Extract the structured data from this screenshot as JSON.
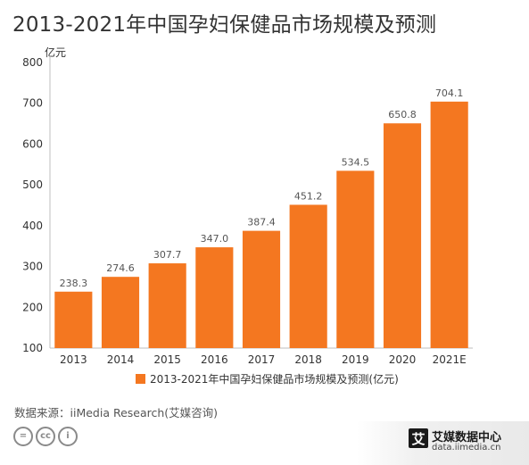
{
  "chart_data": {
    "type": "bar",
    "title": "2013-2021年中国孕妇保健品市场规模及预测",
    "unit_label": "亿元",
    "categories": [
      "2013",
      "2014",
      "2015",
      "2016",
      "2017",
      "2018",
      "2019",
      "2020",
      "2021E"
    ],
    "series": [
      {
        "name": "2013-2021年中国孕妇保健品市场规模及预测(亿元)",
        "values": [
          238.3,
          274.6,
          307.7,
          347.0,
          387.4,
          451.2,
          534.5,
          650.8,
          704.1
        ],
        "value_labels": [
          "238.3",
          "274.6",
          "307.7",
          "347.0",
          "387.4",
          "451.2",
          "534.5",
          "650.8",
          "704.1"
        ]
      }
    ],
    "ylim": [
      100,
      800
    ],
    "yticks": [
      100,
      200,
      300,
      400,
      500,
      600,
      700,
      800
    ],
    "grid": false,
    "legend_position": "bottom",
    "colors": {
      "bar": "#F47720",
      "axis": "#bfbfbf"
    }
  },
  "source_text": "数据来源：iiMedia Research(艾媒咨询)",
  "license_icons": [
    "equals-icon",
    "cc-icon",
    "person-icon"
  ],
  "license_glyphs": [
    "=",
    "cc",
    "i"
  ],
  "brand": {
    "mark": "艾",
    "name": "艾媒数据中心",
    "url": "data.iimedia.cn"
  }
}
